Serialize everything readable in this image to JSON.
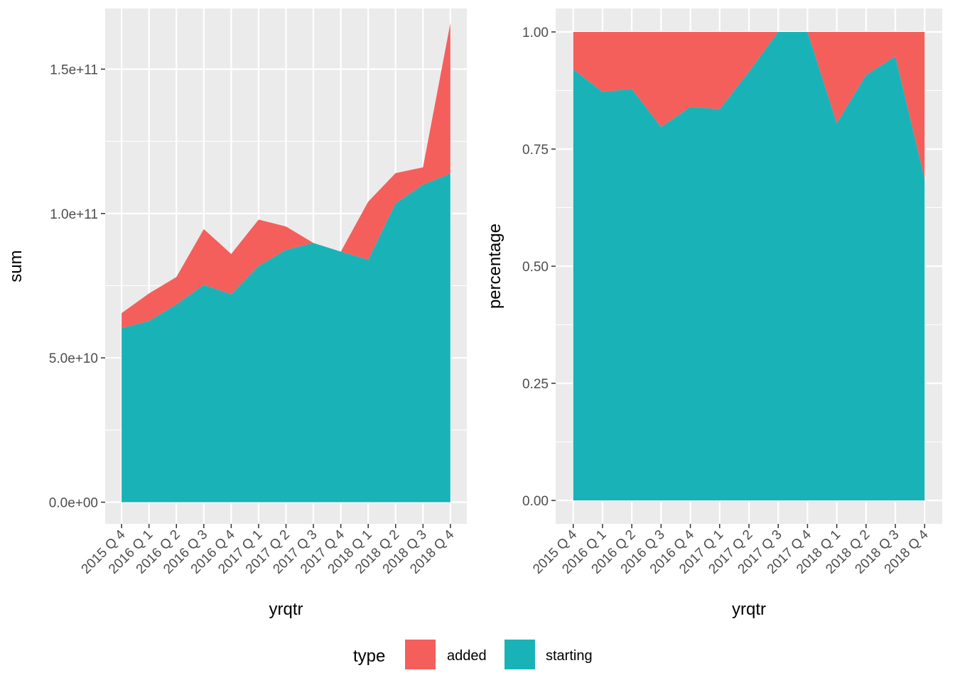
{
  "chart_data": [
    {
      "type": "area",
      "stacked": true,
      "xlabel": "yrqtr",
      "ylabel": "sum",
      "categories": [
        "2015 Q 4",
        "2016 Q 1",
        "2016 Q 2",
        "2016 Q 3",
        "2016 Q 4",
        "2017 Q 1",
        "2017 Q 2",
        "2017 Q 3",
        "2017 Q 4",
        "2018 Q 1",
        "2018 Q 2",
        "2018 Q 3",
        "2018 Q 4"
      ],
      "ylim": [
        -7500000000,
        171000000000
      ],
      "yticks": [
        0,
        50000000000,
        100000000000,
        150000000000
      ],
      "ytick_labels": [
        "0.0e+00",
        "5.0e+10",
        "1.0e+11",
        "1.5e+11"
      ],
      "grid": true,
      "series": [
        {
          "name": "starting",
          "color": "#19B3B7",
          "values": [
            60300000000,
            62800000000,
            68500000000,
            75300000000,
            72000000000,
            81800000000,
            87400000000,
            89800000000,
            86800000000,
            84000000000,
            103500000000,
            110000000000,
            113800000000
          ]
        },
        {
          "name": "added",
          "color": "#F45F5C",
          "values": [
            5200000000,
            9500000000,
            9500000000,
            19300000000,
            14000000000,
            16100000000,
            8100000000,
            0,
            0,
            20100000000,
            10500000000,
            6000000000,
            52200000000
          ]
        }
      ]
    },
    {
      "type": "area",
      "stacked": true,
      "xlabel": "yrqtr",
      "ylabel": "percentage",
      "categories": [
        "2015 Q 4",
        "2016 Q 1",
        "2016 Q 2",
        "2016 Q 3",
        "2016 Q 4",
        "2017 Q 1",
        "2017 Q 2",
        "2017 Q 3",
        "2017 Q 4",
        "2018 Q 1",
        "2018 Q 2",
        "2018 Q 3",
        "2018 Q 4"
      ],
      "ylim": [
        -0.05,
        1.05
      ],
      "yticks": [
        0,
        0.25,
        0.5,
        0.75,
        1.0
      ],
      "ytick_labels": [
        "0.00",
        "0.25",
        "0.50",
        "0.75",
        "1.00"
      ],
      "grid": true,
      "series": [
        {
          "name": "starting",
          "color": "#19B3B7",
          "values": [
            0.92,
            0.872,
            0.878,
            0.797,
            0.84,
            0.835,
            0.915,
            1.0,
            1.0,
            0.805,
            0.908,
            0.948,
            0.686
          ]
        },
        {
          "name": "added",
          "color": "#F45F5C",
          "values": [
            0.08,
            0.128,
            0.122,
            0.203,
            0.16,
            0.165,
            0.085,
            0.0,
            0.0,
            0.195,
            0.092,
            0.052,
            0.314
          ]
        }
      ]
    }
  ],
  "legend": {
    "title": "type",
    "position": "bottom",
    "items": [
      {
        "label": "added",
        "color": "#F45F5C"
      },
      {
        "label": "starting",
        "color": "#19B3B7"
      }
    ]
  }
}
